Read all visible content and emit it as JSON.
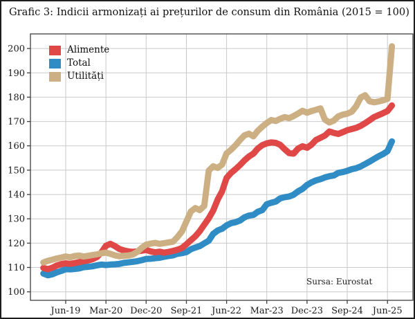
{
  "title": "Grafic 3: Indicii armonizați ai prețurilor de consum din România (2015 = 100)",
  "source_note": "Sursa: Eurostat",
  "colors": {
    "alimente": "#e04747",
    "total": "#2f8cc4",
    "utilitati": "#ccb083",
    "grid": "#c9c9c9",
    "axis": "#3d3d3d"
  },
  "legend": [
    {
      "key": "alimente",
      "label": "Alimente",
      "color": "#e04747"
    },
    {
      "key": "total",
      "label": "Total",
      "color": "#2f8cc4"
    },
    {
      "key": "utilitati",
      "label": "Utilități",
      "color": "#ccb083"
    }
  ],
  "chart_data": {
    "type": "line",
    "title": "Grafic 3: Indicii armonizați ai prețurilor de consum din România (2015 = 100)",
    "xlabel": "",
    "ylabel": "",
    "x_unit": "month",
    "x_start": "2019-01",
    "x_end": "2025-07",
    "x_tick_labels": [
      "Jun-19",
      "Mar-20",
      "Dec-20",
      "Sep-21",
      "Jun-22",
      "Mar-23",
      "Dec-23",
      "Sep-24",
      "Jun-25"
    ],
    "x_tick_indices": [
      5,
      14,
      23,
      32,
      41,
      50,
      59,
      68,
      77
    ],
    "y_ticks": [
      100,
      110,
      120,
      130,
      140,
      150,
      160,
      170,
      180,
      190,
      200
    ],
    "ylim": [
      96.5,
      206
    ],
    "grid": true,
    "legend_position": "top-left",
    "series": [
      {
        "name": "Alimente",
        "key": "alimente",
        "color": "#e04747",
        "values": [
          109.8,
          109.3,
          109.9,
          110.8,
          111.4,
          111.7,
          111.5,
          111.8,
          112.2,
          112.6,
          112.9,
          113.4,
          114.3,
          116.2,
          118.9,
          119.7,
          118.8,
          117.6,
          117.0,
          116.6,
          116.4,
          116.6,
          116.9,
          117.2,
          116.6,
          116.2,
          116.5,
          116.1,
          116.4,
          116.8,
          117.3,
          118.0,
          119.5,
          121.2,
          122.8,
          124.9,
          127.6,
          130.2,
          133.4,
          137.9,
          141.3,
          146.8,
          148.9,
          150.4,
          152.1,
          154.0,
          155.6,
          156.8,
          158.9,
          160.3,
          161.0,
          161.4,
          161.2,
          160.4,
          158.6,
          157.0,
          156.8,
          158.9,
          159.8,
          159.2,
          160.5,
          162.4,
          163.3,
          164.2,
          165.9,
          165.3,
          164.9,
          165.6,
          166.4,
          166.9,
          167.4,
          168.2,
          169.3,
          170.5,
          171.8,
          172.6,
          173.4,
          174.3,
          176.6
        ]
      },
      {
        "name": "Total",
        "key": "total",
        "color": "#2f8cc4",
        "values": [
          107.5,
          106.8,
          107.2,
          108.0,
          108.6,
          109.3,
          109.2,
          109.4,
          109.6,
          110.1,
          110.3,
          110.5,
          110.9,
          111.2,
          111.0,
          111.2,
          111.3,
          111.5,
          111.9,
          112.1,
          112.3,
          112.6,
          113.0,
          113.5,
          113.6,
          113.8,
          114.0,
          114.4,
          114.7,
          115.0,
          115.6,
          115.9,
          116.3,
          117.5,
          118.2,
          118.8,
          119.9,
          121.0,
          123.8,
          125.2,
          125.9,
          127.3,
          128.2,
          128.6,
          129.3,
          130.6,
          131.3,
          131.6,
          132.9,
          133.6,
          136.0,
          136.6,
          137.1,
          138.4,
          138.9,
          139.2,
          139.9,
          141.3,
          142.3,
          143.9,
          145.0,
          145.8,
          146.3,
          147.0,
          147.5,
          147.8,
          148.9,
          149.2,
          149.7,
          150.4,
          150.8,
          151.5,
          152.5,
          153.5,
          154.6,
          155.7,
          156.6,
          157.8,
          161.8
        ]
      },
      {
        "name": "Utilități",
        "key": "utilitati",
        "color": "#ccb083",
        "values": [
          112.1,
          112.7,
          113.2,
          113.7,
          114.1,
          114.5,
          114.2,
          114.7,
          114.9,
          114.5,
          114.8,
          115.1,
          115.4,
          115.8,
          116.1,
          115.6,
          115.0,
          114.6,
          114.8,
          114.9,
          115.3,
          116.4,
          118.1,
          119.4,
          119.8,
          120.1,
          119.7,
          120.0,
          120.3,
          120.6,
          122.5,
          124.8,
          128.9,
          133.0,
          134.4,
          133.6,
          135.3,
          149.8,
          151.6,
          150.9,
          152.3,
          156.9,
          158.4,
          160.2,
          162.4,
          164.3,
          165.0,
          163.9,
          166.2,
          167.9,
          169.4,
          170.6,
          170.2,
          171.1,
          171.8,
          171.4,
          172.2,
          173.3,
          174.4,
          173.6,
          174.3,
          174.8,
          175.4,
          170.8,
          169.6,
          170.4,
          172.1,
          172.8,
          173.2,
          174.0,
          176.3,
          179.8,
          180.8,
          178.3,
          177.9,
          178.2,
          178.7,
          179.3,
          200.9
        ]
      }
    ]
  }
}
